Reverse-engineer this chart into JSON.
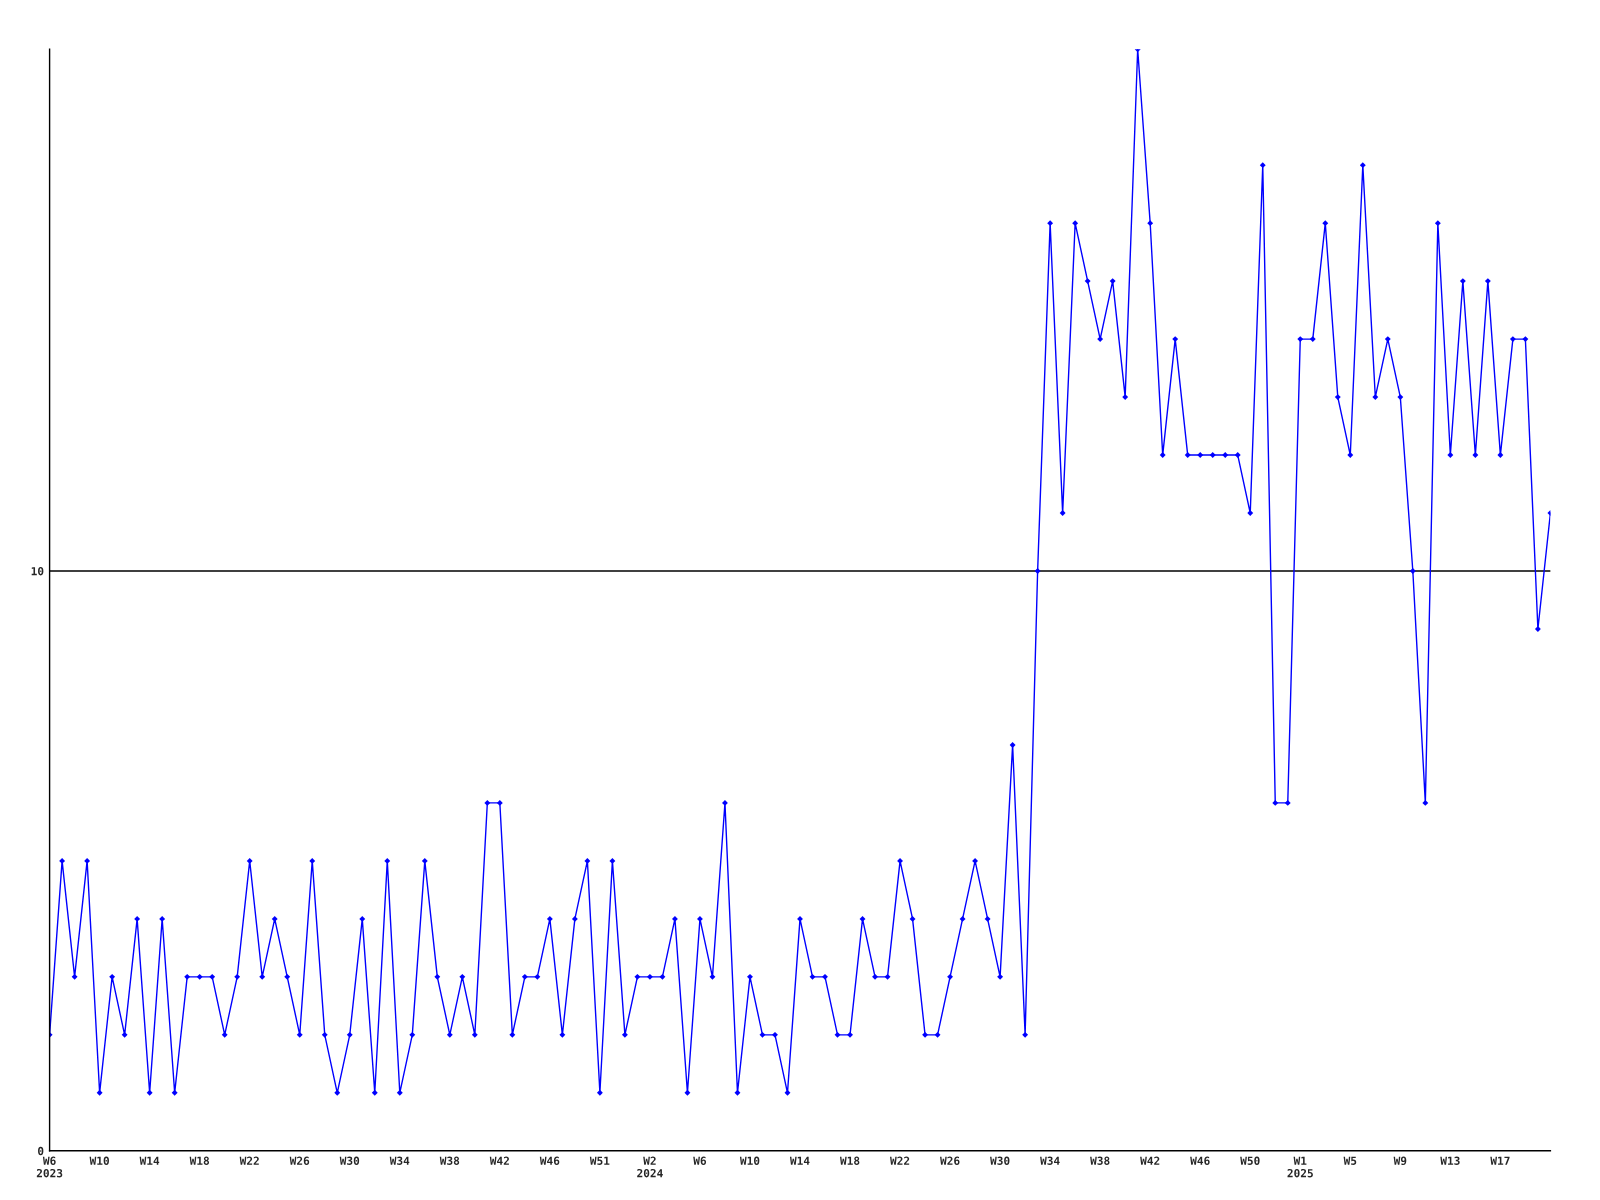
{
  "chart_data": {
    "type": "line",
    "categories": [
      "W6\n2023",
      null,
      null,
      null,
      "W10",
      null,
      null,
      null,
      "W14",
      null,
      null,
      null,
      "W18",
      null,
      null,
      null,
      "W22",
      null,
      null,
      null,
      "W26",
      null,
      null,
      null,
      "W30",
      null,
      null,
      null,
      "W34",
      null,
      null,
      null,
      "W38",
      null,
      null,
      null,
      "W42",
      null,
      null,
      null,
      "W46",
      null,
      null,
      null,
      "W51",
      null,
      null,
      null,
      "W2\n2024",
      null,
      null,
      null,
      "W6",
      null,
      null,
      null,
      "W10",
      null,
      null,
      null,
      "W14",
      null,
      null,
      null,
      "W18",
      null,
      null,
      null,
      "W22",
      null,
      null,
      null,
      "W26",
      null,
      null,
      null,
      "W30",
      null,
      null,
      null,
      "W34",
      null,
      null,
      null,
      "W38",
      null,
      null,
      null,
      "W42",
      null,
      null,
      null,
      "W46",
      null,
      null,
      null,
      "W50",
      null,
      null,
      null,
      "W1\n2025",
      null,
      null,
      null,
      "W5",
      null,
      null,
      null,
      "W9",
      null,
      null,
      null,
      "W13",
      null,
      null,
      null,
      "W17",
      null,
      null,
      null,
      null
    ],
    "series": [
      {
        "color": "#0000ff",
        "values": [
          2,
          5,
          3,
          5,
          1,
          3,
          2,
          4,
          1,
          4,
          1,
          3,
          3,
          3,
          2,
          3,
          5,
          3,
          4,
          3,
          2,
          5,
          2,
          1,
          2,
          4,
          1,
          5,
          1,
          2,
          5,
          3,
          2,
          3,
          2,
          6,
          6,
          2,
          3,
          3,
          4,
          2,
          4,
          5,
          1,
          5,
          2,
          3,
          3,
          3,
          4,
          1,
          4,
          3,
          6,
          1,
          3,
          2,
          2,
          1,
          4,
          3,
          3,
          2,
          2,
          4,
          3,
          3,
          5,
          4,
          2,
          2,
          3,
          4,
          5,
          4,
          3,
          7,
          2,
          10,
          16,
          11,
          16,
          15,
          14,
          15,
          13,
          19,
          16,
          12,
          14,
          12,
          12,
          12,
          12,
          12,
          11,
          17,
          6,
          6,
          14,
          14,
          16,
          13,
          12,
          17,
          13,
          14,
          13,
          10,
          6,
          16,
          12,
          15,
          12,
          15,
          12,
          14,
          14,
          9,
          11
        ]
      }
    ],
    "ylim": [
      0,
      19
    ],
    "yticks": [
      0,
      10
    ],
    "grid": "y",
    "marker": "diamond",
    "line_style": "solid"
  }
}
